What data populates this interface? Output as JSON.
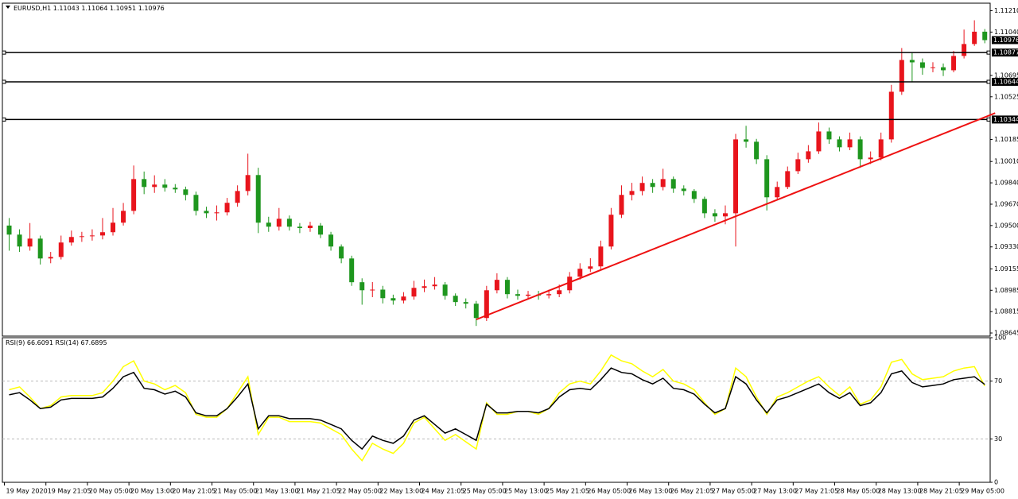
{
  "chart_data": [
    {
      "type": "candlestick",
      "title": "EURUSD,H1",
      "categories": [
        "19 May 2020",
        null,
        null,
        null,
        "19 May 21:05",
        null,
        null,
        null,
        "20 May 05:00",
        null,
        null,
        null,
        "20 May 13:00",
        null,
        null,
        null,
        "20 May 21:05",
        null,
        null,
        null,
        "21 May 05:00",
        null,
        null,
        null,
        "21 May 13:00",
        null,
        null,
        null,
        "21 May 21:05",
        null,
        null,
        null,
        "22 May 05:00",
        null,
        null,
        null,
        "22 May 13:00",
        null,
        null,
        null,
        "24 May 21:05",
        null,
        null,
        null,
        "25 May 05:00",
        null,
        null,
        null,
        "25 May 13:00",
        null,
        null,
        null,
        "25 May 21:05",
        null,
        null,
        null,
        "26 May 05:00",
        null,
        null,
        null,
        "26 May 13:00",
        null,
        null,
        null,
        "26 May 21:05",
        null,
        null,
        null,
        "27 May 05:00",
        null,
        null,
        null,
        "27 May 13:00",
        null,
        null,
        null,
        "27 May 21:05",
        null,
        null,
        null,
        "28 May 05:00",
        null,
        null,
        null,
        "28 May 13:00",
        null,
        null,
        null,
        "28 May 21:05",
        null,
        null,
        null,
        "29 May 05:00",
        null,
        null
      ],
      "open": [
        1.095,
        1.09428,
        1.09333,
        1.09396,
        1.09238,
        1.0925,
        1.09365,
        1.09409,
        1.09415,
        1.09421,
        1.09447,
        1.09523,
        1.09617,
        1.0987,
        1.09807,
        1.09826,
        1.09801,
        1.09788,
        1.09744,
        1.09617,
        1.09598,
        1.09605,
        1.09681,
        1.09775,
        1.09902,
        1.09523,
        1.09491,
        1.09554,
        1.09491,
        1.0948,
        1.095,
        1.09428,
        1.09333,
        1.09238,
        1.09049,
        1.08985,
        1.0899,
        1.08922,
        1.08903,
        1.08935,
        1.09004,
        1.09017,
        1.0903,
        1.08941,
        1.08891,
        1.08878,
        1.08764,
        1.08985,
        1.09068,
        1.08954,
        1.08941,
        1.0895,
        1.08945,
        1.08954,
        1.08985,
        1.09093,
        1.09156,
        1.09175,
        1.09333,
        1.09586,
        1.09744,
        1.09775,
        1.09839,
        1.09807,
        1.0987,
        1.09794,
        1.09775,
        1.09712,
        1.09598,
        1.09573,
        1.09598,
        1.10186,
        1.10167,
        1.10028,
        1.09725,
        1.09807,
        1.09933,
        1.10028,
        1.10091,
        1.10249,
        1.10186,
        1.10123,
        1.10186,
        1.10028,
        1.10041,
        1.10186,
        1.10565,
        1.10818,
        1.10799,
        1.10755,
        1.1076,
        1.10736,
        1.1085,
        1.10945,
        1.11043
      ],
      "high": [
        1.0956,
        1.0947,
        1.0952,
        1.0942,
        1.0929,
        1.0942,
        1.0946,
        1.0945,
        1.0947,
        1.0956,
        1.0964,
        1.0968,
        1.09978,
        1.0993,
        1.099,
        1.0987,
        1.0983,
        1.0981,
        1.0977,
        1.0965,
        1.0966,
        1.0972,
        1.0982,
        1.10072,
        1.0996,
        1.0957,
        1.0964,
        1.0958,
        1.0952,
        1.0953,
        1.0952,
        1.0945,
        1.0935,
        1.0926,
        1.0908,
        1.0905,
        1.0902,
        1.0895,
        1.0897,
        1.0906,
        1.0907,
        1.0909,
        1.0905,
        1.0896,
        1.0892,
        1.089,
        1.0902,
        1.0912,
        1.0909,
        1.0899,
        1.0898,
        1.0898,
        1.0899,
        1.0903,
        1.0913,
        1.092,
        1.0924,
        1.0938,
        1.0964,
        1.0982,
        1.0984,
        1.0989,
        1.0987,
        1.09952,
        1.0989,
        1.0982,
        1.0979,
        1.0973,
        1.0963,
        1.0966,
        1.1023,
        1.10294,
        1.1019,
        1.1006,
        1.0985,
        1.0997,
        1.1008,
        1.1014,
        1.1032,
        1.1028,
        1.1021,
        1.1024,
        1.1021,
        1.1009,
        1.1024,
        1.1062,
        1.10913,
        1.1088,
        1.1083,
        1.108,
        1.1079,
        1.1089,
        1.1106,
        1.11134,
        1.11064
      ],
      "low": [
        1.093,
        1.0929,
        1.093,
        1.0919,
        1.092,
        1.0923,
        1.0934,
        1.0937,
        1.0938,
        1.0939,
        1.0942,
        1.095,
        1.0959,
        1.0975,
        1.0976,
        1.0977,
        1.0976,
        1.097,
        1.0958,
        1.0956,
        1.0954,
        1.0958,
        1.0965,
        1.0974,
        1.0944,
        1.0945,
        1.0946,
        1.0946,
        1.0944,
        1.0945,
        1.094,
        1.093,
        1.092,
        1.0902,
        1.0887,
        1.0893,
        1.0888,
        1.0887,
        1.0888,
        1.0891,
        1.0897,
        1.0899,
        1.0891,
        1.0886,
        1.0884,
        1.08701,
        1.0874,
        1.0896,
        1.0892,
        1.0891,
        1.0892,
        1.0891,
        1.0892,
        1.0893,
        1.0896,
        1.0907,
        1.0913,
        1.0915,
        1.0931,
        1.0956,
        1.097,
        1.0974,
        1.0976,
        1.0978,
        1.0976,
        1.0974,
        1.0968,
        1.0956,
        1.0953,
        1.0951,
        1.09333,
        1.1012,
        1.0999,
        1.0962,
        1.097,
        1.0979,
        1.0991,
        1.1,
        1.1007,
        1.1015,
        1.1009,
        1.101,
        1.0996,
        1.0999,
        1.1002,
        1.1016,
        1.1054,
        1.1064,
        1.107,
        1.1072,
        1.1069,
        1.1072,
        1.1083,
        1.1093,
        1.10951
      ],
      "close": [
        1.09428,
        1.09333,
        1.09396,
        1.09238,
        1.0925,
        1.09365,
        1.09409,
        1.09415,
        1.09421,
        1.09447,
        1.09523,
        1.09617,
        1.0987,
        1.09807,
        1.09826,
        1.09801,
        1.09788,
        1.09744,
        1.09617,
        1.09598,
        1.09605,
        1.09681,
        1.09775,
        1.09902,
        1.09523,
        1.09491,
        1.09554,
        1.09491,
        1.0948,
        1.095,
        1.09428,
        1.09333,
        1.09238,
        1.09049,
        1.08985,
        1.0899,
        1.08922,
        1.08903,
        1.08935,
        1.09004,
        1.09017,
        1.0903,
        1.08941,
        1.08891,
        1.08878,
        1.08764,
        1.08985,
        1.09068,
        1.08954,
        1.08941,
        1.0895,
        1.08945,
        1.08954,
        1.08985,
        1.09093,
        1.09156,
        1.09175,
        1.09333,
        1.09586,
        1.09744,
        1.09775,
        1.09839,
        1.09807,
        1.0987,
        1.09794,
        1.09775,
        1.09712,
        1.09598,
        1.09573,
        1.09598,
        1.10186,
        1.10167,
        1.10028,
        1.09725,
        1.09807,
        1.09933,
        1.10028,
        1.10091,
        1.10249,
        1.10186,
        1.10123,
        1.10186,
        1.10028,
        1.10041,
        1.10186,
        1.10565,
        1.10818,
        1.10799,
        1.10755,
        1.1076,
        1.10736,
        1.1085,
        1.10945,
        1.11043,
        1.10976
      ],
      "up_color": "#e8141c",
      "down_color": "#1e961e",
      "ylim": [
        1.0862,
        1.1127
      ],
      "yticks": [
        {
          "value": 1.1121,
          "label": "1.11210"
        },
        {
          "value": 1.1104,
          "label": "1.11040"
        },
        1.10695,
        1.10525,
        1.10185,
        {
          "value": 1.1001,
          "label": "1.10010"
        },
        {
          "value": 1.0984,
          "label": "1.09840"
        },
        {
          "value": 1.0967,
          "label": "1.09670"
        },
        {
          "value": 1.095,
          "label": "1.09500"
        },
        {
          "value": 1.0933,
          "label": "1.09330"
        },
        1.09155,
        1.08985,
        1.08815,
        1.08645
      ],
      "grid": false,
      "hlines": [
        1.10877,
        1.10644,
        1.10344
      ],
      "hline_color": "#000000",
      "trendline": {
        "x": [
          45,
          95
        ],
        "y": [
          1.08752,
          1.10395
        ],
        "color": "#ee1111"
      },
      "last_price_label": true
    },
    {
      "type": "line",
      "series": [
        {
          "name": "RSI(9)",
          "color": "#ffff00",
          "values": [
            64,
            66,
            59,
            51,
            53,
            59,
            60,
            60,
            60,
            62,
            70,
            80,
            84,
            70,
            68,
            64,
            67,
            62,
            47,
            45,
            45,
            51,
            62,
            73,
            33,
            45,
            45,
            42,
            42,
            42,
            41,
            37,
            33,
            23,
            15,
            27,
            23,
            20,
            27,
            41,
            45,
            37,
            29,
            33,
            28,
            23,
            55,
            47,
            47,
            49,
            49,
            47,
            51,
            62,
            68,
            70,
            68,
            77,
            88,
            84,
            82,
            77,
            73,
            78,
            70,
            68,
            64,
            55,
            47,
            51,
            79,
            73,
            59,
            47,
            59,
            62,
            66,
            70,
            73,
            66,
            60,
            66,
            54,
            57,
            66,
            83,
            85,
            75,
            71,
            72,
            73,
            77,
            79,
            80,
            66.6091
          ]
        },
        {
          "name": "RSI(14)",
          "color": "#000000",
          "values": [
            60.5,
            62,
            57,
            51,
            52,
            57,
            58,
            58,
            58,
            59,
            65,
            73,
            76,
            65,
            64,
            61,
            63,
            59,
            48,
            46,
            46,
            51,
            59,
            68,
            37,
            46,
            46,
            44,
            44,
            44,
            43,
            40,
            37,
            29,
            23,
            32,
            29,
            27,
            32,
            43,
            46,
            40,
            34,
            37,
            33,
            29,
            54,
            48,
            48,
            49,
            49,
            48,
            51,
            59,
            64,
            65,
            64,
            71,
            79,
            76,
            75,
            71,
            68,
            72,
            65,
            64,
            61,
            54,
            48,
            51,
            73,
            68,
            57,
            48,
            57,
            59,
            62,
            65,
            68,
            62,
            58,
            62,
            53,
            55,
            62,
            75,
            77,
            69,
            66,
            67,
            68,
            71,
            72,
            73,
            67.6895
          ]
        }
      ],
      "ylim": [
        0,
        100
      ],
      "yticks": [
        100,
        70,
        30,
        0
      ],
      "dashed_levels": true
    }
  ]
}
